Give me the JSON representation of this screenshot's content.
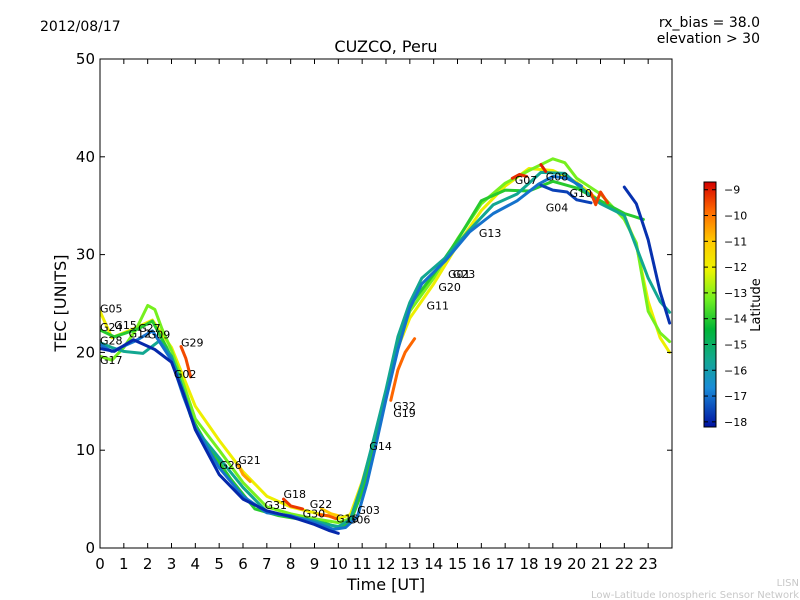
{
  "header": {
    "date": "2012/08/17",
    "rx_bias": "rx_bias = 38.0",
    "elevation": "elevation > 30"
  },
  "footer": {
    "line1": "LISN",
    "line2": "Low-Latitude Ionospheric Sensor Network"
  },
  "chart_data": {
    "type": "line",
    "title": "CUZCO, Peru",
    "xlabel": "Time [UT]",
    "ylabel": "TEC [UNITS]",
    "xlim": [
      0,
      24
    ],
    "ylim": [
      0,
      50
    ],
    "x_ticks": [
      "0",
      "1",
      "2",
      "3",
      "4",
      "5",
      "6",
      "7",
      "8",
      "9",
      "10",
      "11",
      "12",
      "13",
      "14",
      "15",
      "16",
      "17",
      "18",
      "19",
      "20",
      "21",
      "22",
      "23"
    ],
    "y_ticks": [
      "0",
      "10",
      "20",
      "30",
      "40",
      "50"
    ],
    "grid": false,
    "colorbar": {
      "label": "Latitude",
      "ticks": [
        "−9",
        "−10",
        "−11",
        "−12",
        "−13",
        "−14",
        "−15",
        "−16",
        "−17",
        "−18"
      ],
      "tick_values": [
        -9,
        -10,
        -11,
        -12,
        -13,
        -14,
        -15,
        -16,
        -17,
        -18
      ],
      "range": [
        -18.2,
        -8.7
      ]
    },
    "satellites": [
      {
        "name": "G05",
        "x": 0.0,
        "y": 24.1
      },
      {
        "name": "G24",
        "x": 0.0,
        "y": 22.2
      },
      {
        "name": "G15",
        "x": 0.6,
        "y": 22.4
      },
      {
        "name": "G27",
        "x": 1.6,
        "y": 22.1
      },
      {
        "name": "G28",
        "x": 0.0,
        "y": 20.8
      },
      {
        "name": "G12",
        "x": 1.2,
        "y": 21.5
      },
      {
        "name": "G09",
        "x": 2.0,
        "y": 21.4
      },
      {
        "name": "G29",
        "x": 3.4,
        "y": 20.6
      },
      {
        "name": "G17",
        "x": 0.0,
        "y": 18.8
      },
      {
        "name": "G02",
        "x": 3.1,
        "y": 17.4
      },
      {
        "name": "G21",
        "x": 5.8,
        "y": 8.6
      },
      {
        "name": "G26",
        "x": 5.0,
        "y": 8.1
      },
      {
        "name": "G31",
        "x": 6.9,
        "y": 4.0
      },
      {
        "name": "G18",
        "x": 7.7,
        "y": 5.1
      },
      {
        "name": "G22",
        "x": 8.8,
        "y": 4.1
      },
      {
        "name": "G30",
        "x": 8.5,
        "y": 3.1
      },
      {
        "name": "G16",
        "x": 9.9,
        "y": 2.6
      },
      {
        "name": "G06",
        "x": 10.4,
        "y": 2.5
      },
      {
        "name": "G03",
        "x": 10.8,
        "y": 3.5
      },
      {
        "name": "G14",
        "x": 11.3,
        "y": 10.0
      },
      {
        "name": "G32",
        "x": 12.3,
        "y": 14.1
      },
      {
        "name": "G19",
        "x": 12.3,
        "y": 13.4
      },
      {
        "name": "G11",
        "x": 13.7,
        "y": 24.4
      },
      {
        "name": "G20",
        "x": 14.2,
        "y": 26.3
      },
      {
        "name": "G01",
        "x": 14.6,
        "y": 27.6
      },
      {
        "name": "G23",
        "x": 14.8,
        "y": 27.6
      },
      {
        "name": "G13",
        "x": 15.9,
        "y": 31.8
      },
      {
        "name": "G04",
        "x": 18.7,
        "y": 34.4
      },
      {
        "name": "G07",
        "x": 17.4,
        "y": 37.2
      },
      {
        "name": "G08",
        "x": 18.7,
        "y": 37.6
      },
      {
        "name": "G10",
        "x": 19.7,
        "y": 35.9
      }
    ],
    "series": [
      {
        "lat": -12.0,
        "points": [
          [
            0,
            24.2
          ],
          [
            0.5,
            21.5
          ],
          [
            1.5,
            22.5
          ],
          [
            2.2,
            23.3
          ],
          [
            3,
            20.5
          ],
          [
            3.5,
            17.5
          ],
          [
            4,
            14.5
          ],
          [
            5,
            11
          ],
          [
            6,
            7.8
          ],
          [
            7,
            5.3
          ],
          [
            8,
            4.2
          ],
          [
            9,
            3.6
          ],
          [
            10,
            3.0
          ],
          [
            10.5,
            3.4
          ],
          [
            11,
            6.8
          ],
          [
            11.5,
            11
          ],
          [
            12,
            15.5
          ],
          [
            12.5,
            20.5
          ],
          [
            13,
            23.5
          ],
          [
            14,
            27
          ],
          [
            15,
            31
          ],
          [
            16,
            34.5
          ],
          [
            17,
            37
          ],
          [
            18,
            38.8
          ],
          [
            19,
            38.6
          ],
          [
            20,
            37.4
          ],
          [
            21,
            35.4
          ],
          [
            22,
            34
          ],
          [
            22.5,
            31
          ],
          [
            23,
            25.2
          ],
          [
            23.5,
            21.5
          ],
          [
            23.9,
            20
          ]
        ]
      },
      {
        "lat": -13.2,
        "points": [
          [
            0,
            19.6
          ],
          [
            0.5,
            19.2
          ],
          [
            1.0,
            20.5
          ],
          [
            1.5,
            22.3
          ],
          [
            2.0,
            24.8
          ],
          [
            2.3,
            24.4
          ],
          [
            2.6,
            22.4
          ],
          [
            3,
            20.2
          ],
          [
            3.5,
            16.8
          ],
          [
            4,
            13.2
          ],
          [
            5,
            10
          ],
          [
            6,
            6.7
          ],
          [
            7,
            4.2
          ],
          [
            8,
            3.5
          ],
          [
            9,
            3.0
          ],
          [
            10,
            2.6
          ],
          [
            10.5,
            3.0
          ],
          [
            11,
            6.2
          ],
          [
            11.5,
            10.7
          ],
          [
            12,
            15.6
          ],
          [
            12.5,
            20.8
          ],
          [
            13,
            24.2
          ],
          [
            14,
            27.6
          ],
          [
            15,
            31.6
          ],
          [
            16,
            35.2
          ],
          [
            17,
            37.3
          ],
          [
            18,
            38.6
          ],
          [
            19,
            39.8
          ],
          [
            19.5,
            39.4
          ],
          [
            20,
            37.8
          ],
          [
            21,
            36.2
          ],
          [
            22,
            33.6
          ],
          [
            22.5,
            31.2
          ],
          [
            23,
            24.2
          ],
          [
            23.5,
            22.0
          ],
          [
            23.9,
            21.1
          ]
        ]
      },
      {
        "lat": -14.0,
        "points": [
          [
            0,
            22.3
          ],
          [
            0.6,
            21.6
          ],
          [
            1.6,
            22.4
          ],
          [
            2.2,
            23.2
          ],
          [
            2.8,
            20.5
          ],
          [
            3.2,
            18.3
          ],
          [
            3.8,
            13.5
          ],
          [
            4.5,
            10.5
          ],
          [
            5.5,
            7.0
          ],
          [
            6.5,
            4.0
          ],
          [
            7.5,
            3.3
          ],
          [
            8.5,
            2.9
          ],
          [
            9.5,
            2.5
          ],
          [
            10,
            2.1
          ],
          [
            10.5,
            2.6
          ],
          [
            11,
            5.8
          ],
          [
            11.5,
            10.5
          ],
          [
            12,
            15.8
          ],
          [
            12.5,
            21.2
          ],
          [
            13,
            24.8
          ],
          [
            14,
            28
          ],
          [
            15,
            31.5
          ],
          [
            16,
            35.5
          ],
          [
            17,
            36.6
          ],
          [
            18,
            36.5
          ],
          [
            19,
            37.5
          ],
          [
            20,
            36.8
          ],
          [
            21,
            35.5
          ],
          [
            22,
            34.2
          ],
          [
            22.8,
            33.6
          ]
        ]
      },
      {
        "lat": -15.6,
        "points": [
          [
            0,
            21.0
          ],
          [
            0.5,
            20.5
          ],
          [
            1.0,
            20.1
          ],
          [
            1.8,
            19.9
          ],
          [
            2.5,
            21.2
          ],
          [
            3,
            19.6
          ],
          [
            3.5,
            16.1
          ],
          [
            4,
            12.2
          ],
          [
            5,
            9.2
          ],
          [
            6,
            6.2
          ],
          [
            7,
            3.7
          ],
          [
            8,
            3.2
          ],
          [
            9,
            2.8
          ],
          [
            9.5,
            2.4
          ],
          [
            10,
            2.2
          ],
          [
            10.5,
            2.9
          ],
          [
            11,
            6.6
          ],
          [
            11.5,
            11.3
          ],
          [
            12,
            16.2
          ],
          [
            12.5,
            21.6
          ],
          [
            13,
            25.1
          ],
          [
            13.5,
            27.6
          ],
          [
            14.5,
            29.7
          ],
          [
            15.5,
            32.5
          ],
          [
            16.5,
            35.1
          ],
          [
            17.5,
            36.2
          ],
          [
            18.5,
            38.4
          ],
          [
            19.5,
            38.3
          ],
          [
            20,
            37.2
          ],
          [
            21,
            35.2
          ],
          [
            22,
            34
          ],
          [
            23,
            27.6
          ],
          [
            23.5,
            25.2
          ],
          [
            23.9,
            24.1
          ]
        ]
      },
      {
        "lat": -17.0,
        "points": [
          [
            0,
            20.8
          ],
          [
            0.5,
            20.1
          ],
          [
            1.5,
            21.2
          ],
          [
            2.2,
            22.2
          ],
          [
            3,
            19.2
          ],
          [
            3.5,
            15.5
          ],
          [
            4,
            12.3
          ],
          [
            5,
            8.2
          ],
          [
            6,
            5.3
          ],
          [
            7,
            3.6
          ],
          [
            8,
            3.3
          ],
          [
            9,
            2.6
          ],
          [
            9.8,
            1.9
          ],
          [
            10.3,
            2.1
          ],
          [
            10.8,
            3.2
          ],
          [
            11.2,
            6.6
          ],
          [
            11.6,
            10.8
          ],
          [
            12,
            15.2
          ],
          [
            12.5,
            20.3
          ],
          [
            13,
            24.5
          ],
          [
            13.5,
            27
          ],
          [
            14.5,
            29.4
          ],
          [
            15.5,
            32.3
          ],
          [
            16.5,
            34.2
          ],
          [
            17.5,
            35.5
          ],
          [
            18.4,
            37.2
          ],
          [
            19,
            38
          ],
          [
            19.6,
            37.8
          ],
          [
            20.2,
            37.0
          ]
        ]
      },
      {
        "lat": -17.9,
        "points": [
          [
            0,
            20.4
          ],
          [
            0.6,
            20.1
          ],
          [
            1.4,
            21.3
          ],
          [
            2.3,
            20.3
          ],
          [
            3,
            19.0
          ],
          [
            3.5,
            15.8
          ],
          [
            4,
            12.1
          ],
          [
            5,
            7.5
          ],
          [
            6,
            5.0
          ],
          [
            7,
            3.8
          ],
          [
            8,
            3.2
          ],
          [
            9,
            2.4
          ],
          [
            9.6,
            1.8
          ],
          [
            10,
            1.5
          ]
        ]
      },
      {
        "lat": -17.6,
        "points": [
          [
            18.5,
            37.1
          ],
          [
            19,
            36.6
          ],
          [
            19.6,
            36.4
          ],
          [
            20,
            35.6
          ],
          [
            20.6,
            35.3
          ]
        ]
      },
      {
        "lat": -17.8,
        "points": [
          [
            22.0,
            36.9
          ],
          [
            22.5,
            35.2
          ],
          [
            23,
            31.5
          ],
          [
            23.5,
            26.2
          ],
          [
            23.9,
            23.0
          ]
        ]
      },
      {
        "lat": -9.2,
        "points": [
          [
            17.3,
            37.8
          ],
          [
            17.6,
            38.2
          ],
          [
            17.9,
            38.0
          ]
        ]
      },
      {
        "lat": -9.4,
        "points": [
          [
            20.6,
            36.3
          ],
          [
            20.8,
            35.1
          ],
          [
            21.0,
            36.4
          ],
          [
            21.3,
            35.3
          ]
        ]
      },
      {
        "lat": -9.8,
        "points": [
          [
            12.2,
            15.1
          ],
          [
            12.5,
            18.2
          ],
          [
            12.8,
            20.0
          ],
          [
            13.2,
            21.4
          ]
        ]
      },
      {
        "lat": -9.5,
        "points": [
          [
            3.4,
            20.6
          ],
          [
            3.6,
            19.4
          ],
          [
            3.8,
            17.5
          ]
        ]
      },
      {
        "lat": -9.3,
        "points": [
          [
            7.7,
            5.0
          ],
          [
            8.0,
            4.3
          ],
          [
            8.5,
            4.0
          ]
        ]
      },
      {
        "lat": -9.6,
        "points": [
          [
            9.2,
            3.4
          ],
          [
            9.6,
            3.3
          ],
          [
            9.9,
            3.0
          ]
        ]
      },
      {
        "lat": -9.0,
        "points": [
          [
            18.5,
            39.2
          ],
          [
            18.7,
            38.5
          ]
        ]
      },
      {
        "lat": -10.5,
        "points": [
          [
            5.8,
            8.5
          ],
          [
            6.0,
            7.5
          ],
          [
            6.3,
            6.8
          ]
        ]
      },
      {
        "lat": -11.0,
        "points": [
          [
            9.3,
            4.0
          ],
          [
            9.7,
            3.5
          ],
          [
            10.0,
            3.3
          ]
        ]
      }
    ]
  }
}
